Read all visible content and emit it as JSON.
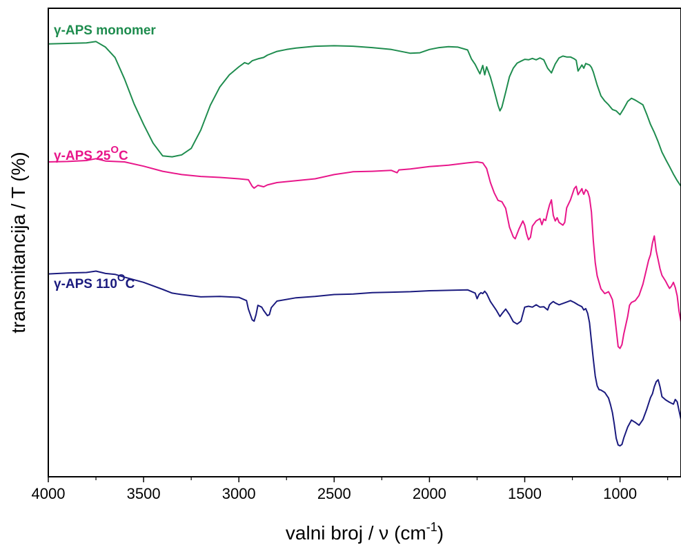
{
  "chart_data": {
    "type": "line",
    "title": "",
    "xlabel": {
      "main": "valni broj / ν (cm",
      "sup": "-1",
      "tail": ")"
    },
    "ylabel": "transmitancija / T (%)",
    "xlim": [
      4000,
      680
    ],
    "x_reversed": true,
    "ylim": [
      0,
      100
    ],
    "y_ticks_shown": false,
    "grid": false,
    "x_ticks": [
      {
        "value": 4000,
        "label": "4000"
      },
      {
        "value": 3500,
        "label": "3500"
      },
      {
        "value": 3000,
        "label": "3000"
      },
      {
        "value": 2500,
        "label": "2500"
      },
      {
        "value": 2000,
        "label": "2000"
      },
      {
        "value": 1500,
        "label": "1500"
      },
      {
        "value": 1000,
        "label": "1000"
      }
    ],
    "series": [
      {
        "name": "γ-APS monomer",
        "label": {
          "main": "γ-APS monomer",
          "sup": "",
          "tail": ""
        },
        "color": "#1e8c4e",
        "x": [
          4000,
          3900,
          3800,
          3750,
          3700,
          3650,
          3600,
          3550,
          3500,
          3450,
          3400,
          3350,
          3300,
          3250,
          3200,
          3150,
          3100,
          3050,
          3000,
          2970,
          2950,
          2930,
          2900,
          2870,
          2850,
          2800,
          2750,
          2700,
          2600,
          2500,
          2400,
          2300,
          2200,
          2100,
          2050,
          2000,
          1950,
          1900,
          1850,
          1800,
          1780,
          1760,
          1745,
          1735,
          1720,
          1710,
          1700,
          1680,
          1660,
          1640,
          1630,
          1620,
          1600,
          1580,
          1560,
          1540,
          1520,
          1500,
          1480,
          1460,
          1440,
          1420,
          1400,
          1380,
          1360,
          1340,
          1320,
          1300,
          1280,
          1260,
          1240,
          1230,
          1220,
          1200,
          1190,
          1180,
          1160,
          1150,
          1140,
          1120,
          1100,
          1080,
          1060,
          1040,
          1020,
          1000,
          980,
          960,
          940,
          920,
          900,
          880,
          860,
          840,
          820,
          800,
          780,
          760,
          740,
          720,
          700,
          680
        ],
        "y": [
          92.4,
          92.5,
          92.6,
          92.9,
          91.7,
          89.5,
          84.9,
          79.6,
          75.2,
          71.2,
          68.5,
          68.3,
          68.7,
          70.1,
          74.0,
          79.3,
          83.2,
          85.8,
          87.5,
          88.4,
          88.1,
          88.8,
          89.2,
          89.5,
          90.0,
          90.8,
          91.2,
          91.5,
          91.9,
          92.0,
          91.9,
          91.6,
          91.2,
          90.4,
          90.5,
          91.2,
          91.6,
          91.8,
          91.7,
          91.1,
          89.2,
          88.0,
          86.8,
          86.0,
          87.8,
          85.8,
          87.5,
          85.3,
          82.4,
          79.3,
          78.1,
          78.9,
          82.1,
          85.4,
          87.2,
          88.3,
          88.7,
          89.1,
          89.0,
          89.3,
          89.0,
          89.4,
          89.0,
          87.2,
          86.2,
          88.1,
          89.4,
          89.8,
          89.6,
          89.6,
          89.2,
          88.9,
          86.6,
          87.9,
          87.2,
          88.2,
          87.9,
          87.4,
          86.4,
          83.6,
          81.3,
          80.2,
          79.4,
          78.4,
          78.1,
          77.3,
          78.6,
          80.1,
          80.8,
          80.4,
          79.9,
          79.4,
          77.4,
          75.2,
          73.5,
          71.5,
          69.3,
          67.7,
          66.2,
          64.6,
          63.2,
          62.0
        ]
      },
      {
        "name": "γ-APS 25°C",
        "label": {
          "main": "γ-APS 25",
          "sup": "O",
          "tail": "C"
        },
        "color": "#e8168a",
        "x": [
          4000,
          3900,
          3800,
          3750,
          3700,
          3600,
          3500,
          3400,
          3300,
          3200,
          3100,
          3000,
          2950,
          2930,
          2920,
          2900,
          2870,
          2850,
          2800,
          2700,
          2600,
          2500,
          2400,
          2300,
          2200,
          2170,
          2160,
          2100,
          2000,
          1900,
          1800,
          1750,
          1720,
          1700,
          1680,
          1660,
          1640,
          1620,
          1600,
          1580,
          1560,
          1550,
          1530,
          1510,
          1500,
          1490,
          1480,
          1470,
          1460,
          1440,
          1420,
          1410,
          1400,
          1390,
          1380,
          1370,
          1360,
          1350,
          1340,
          1330,
          1320,
          1300,
          1290,
          1280,
          1260,
          1240,
          1230,
          1220,
          1200,
          1195,
          1190,
          1180,
          1170,
          1160,
          1150,
          1140,
          1130,
          1120,
          1100,
          1080,
          1070,
          1060,
          1050,
          1040,
          1030,
          1020,
          1010,
          1000,
          990,
          980,
          960,
          950,
          940,
          920,
          900,
          880,
          860,
          850,
          840,
          830,
          820,
          810,
          800,
          790,
          780,
          760,
          750,
          740,
          730,
          720,
          710,
          700,
          690,
          680
        ],
        "y": [
          67.2,
          67.3,
          67.5,
          67.9,
          67.4,
          67.2,
          66.3,
          65.2,
          64.5,
          64.1,
          63.9,
          63.6,
          63.4,
          62.0,
          61.6,
          62.2,
          61.9,
          62.3,
          62.8,
          63.2,
          63.6,
          64.5,
          65.1,
          65.2,
          65.4,
          64.9,
          65.5,
          65.7,
          66.2,
          66.5,
          67.0,
          67.2,
          67.0,
          65.8,
          62.8,
          60.6,
          59.0,
          58.7,
          57.3,
          53.3,
          51.2,
          50.8,
          52.9,
          54.6,
          53.7,
          51.8,
          50.6,
          51.1,
          53.5,
          54.6,
          55.1,
          53.8,
          55.0,
          54.7,
          56.5,
          58.0,
          59.1,
          55.8,
          54.6,
          55.3,
          54.3,
          53.7,
          54.3,
          57.4,
          59.1,
          61.5,
          62.0,
          60.2,
          61.5,
          60.7,
          60.3,
          61.3,
          60.9,
          59.6,
          56.5,
          50.4,
          45.7,
          42.9,
          40.1,
          39.1,
          39.3,
          39.5,
          38.7,
          37.8,
          35.2,
          31.5,
          27.8,
          27.4,
          28.2,
          30.5,
          34.2,
          36.6,
          37.2,
          37.6,
          38.7,
          41.1,
          44.5,
          46.2,
          47.4,
          49.9,
          51.4,
          48.2,
          46.3,
          44.4,
          43.0,
          41.7,
          40.9,
          40.2,
          40.7,
          41.5,
          40.4,
          38.6,
          35.3,
          33.0
        ]
      },
      {
        "name": "γ-APS 110°C",
        "label": {
          "main": "γ-APS 110",
          "sup": "O",
          "tail": "C"
        },
        "color": "#1a1a7e",
        "x": [
          4000,
          3900,
          3800,
          3750,
          3700,
          3650,
          3600,
          3500,
          3400,
          3350,
          3300,
          3200,
          3100,
          3000,
          2960,
          2950,
          2930,
          2920,
          2910,
          2900,
          2880,
          2870,
          2850,
          2840,
          2830,
          2800,
          2700,
          2600,
          2500,
          2400,
          2300,
          2200,
          2100,
          2000,
          1900,
          1800,
          1760,
          1750,
          1740,
          1730,
          1720,
          1710,
          1700,
          1680,
          1650,
          1630,
          1620,
          1600,
          1580,
          1560,
          1540,
          1520,
          1500,
          1480,
          1460,
          1440,
          1420,
          1400,
          1380,
          1370,
          1360,
          1350,
          1340,
          1320,
          1300,
          1280,
          1260,
          1240,
          1220,
          1200,
          1190,
          1180,
          1170,
          1160,
          1150,
          1140,
          1130,
          1120,
          1110,
          1100,
          1080,
          1060,
          1050,
          1040,
          1030,
          1020,
          1010,
          1000,
          990,
          980,
          960,
          940,
          920,
          900,
          880,
          860,
          840,
          830,
          820,
          810,
          800,
          790,
          780,
          760,
          740,
          720,
          710,
          700,
          690,
          680
        ],
        "y": [
          43.3,
          43.5,
          43.6,
          43.9,
          43.4,
          43.2,
          42.6,
          41.5,
          40.0,
          39.2,
          38.9,
          38.4,
          38.5,
          38.3,
          37.6,
          35.8,
          33.5,
          33.2,
          34.6,
          36.6,
          36.2,
          35.5,
          34.4,
          34.6,
          36.1,
          37.5,
          38.2,
          38.5,
          38.9,
          39.0,
          39.3,
          39.4,
          39.5,
          39.7,
          39.8,
          39.9,
          39.2,
          38.0,
          38.9,
          39.3,
          39.1,
          39.6,
          39.1,
          37.4,
          35.6,
          34.2,
          34.8,
          35.8,
          34.6,
          33.1,
          32.6,
          33.2,
          36.2,
          36.4,
          36.2,
          36.7,
          36.2,
          36.3,
          35.6,
          36.7,
          37.1,
          37.4,
          37.1,
          36.7,
          37.0,
          37.3,
          37.6,
          37.2,
          36.7,
          36.3,
          35.6,
          35.9,
          34.9,
          32.9,
          28.9,
          25.1,
          21.5,
          19.4,
          18.6,
          18.5,
          18.0,
          16.8,
          15.4,
          13.7,
          11.2,
          8.2,
          6.8,
          6.6,
          6.9,
          8.3,
          10.6,
          12.1,
          11.6,
          11.0,
          12.2,
          14.4,
          16.9,
          17.7,
          19.2,
          20.3,
          20.7,
          19.2,
          17.1,
          16.4,
          15.9,
          15.5,
          16.5,
          16.0,
          14.1,
          12.2
        ]
      }
    ]
  }
}
